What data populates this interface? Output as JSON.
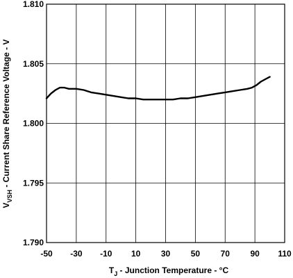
{
  "chart_data": {
    "type": "line",
    "title": "",
    "xlabel": {
      "main": "T",
      "sub": "J",
      "rest": " - Junction Temperature - °C"
    },
    "ylabel": {
      "main": "V",
      "sub": "VSH",
      "rest": " - Current Share Reference Voltage - V"
    },
    "xlim": [
      -50,
      110
    ],
    "ylim": [
      1.79,
      1.81
    ],
    "x_ticks": [
      -50,
      -30,
      -10,
      10,
      30,
      50,
      70,
      90,
      110
    ],
    "x_tick_labels": [
      "-50",
      "-30",
      "-10",
      "10",
      "30",
      "50",
      "70",
      "90",
      "110"
    ],
    "y_ticks": [
      1.79,
      1.795,
      1.8,
      1.805,
      1.81
    ],
    "y_tick_labels": [
      "1.790",
      "1.795",
      "1.800",
      "1.805",
      "1.810"
    ],
    "grid": true,
    "series": [
      {
        "x": [
          -50,
          -47,
          -44,
          -41,
          -38,
          -35,
          -30,
          -25,
          -20,
          -15,
          -10,
          -5,
          0,
          5,
          10,
          15,
          20,
          25,
          30,
          35,
          40,
          45,
          50,
          55,
          60,
          65,
          70,
          75,
          80,
          85,
          88,
          91,
          94,
          97,
          100
        ],
        "y": [
          1.8021,
          1.8025,
          1.8028,
          1.803,
          1.803,
          1.8029,
          1.8029,
          1.8028,
          1.8026,
          1.8025,
          1.8024,
          1.8023,
          1.8022,
          1.8021,
          1.8021,
          1.802,
          1.802,
          1.802,
          1.802,
          1.802,
          1.8021,
          1.8021,
          1.8022,
          1.8023,
          1.8024,
          1.8025,
          1.8026,
          1.8027,
          1.8028,
          1.8029,
          1.803,
          1.8032,
          1.8035,
          1.8037,
          1.8039
        ]
      }
    ]
  }
}
